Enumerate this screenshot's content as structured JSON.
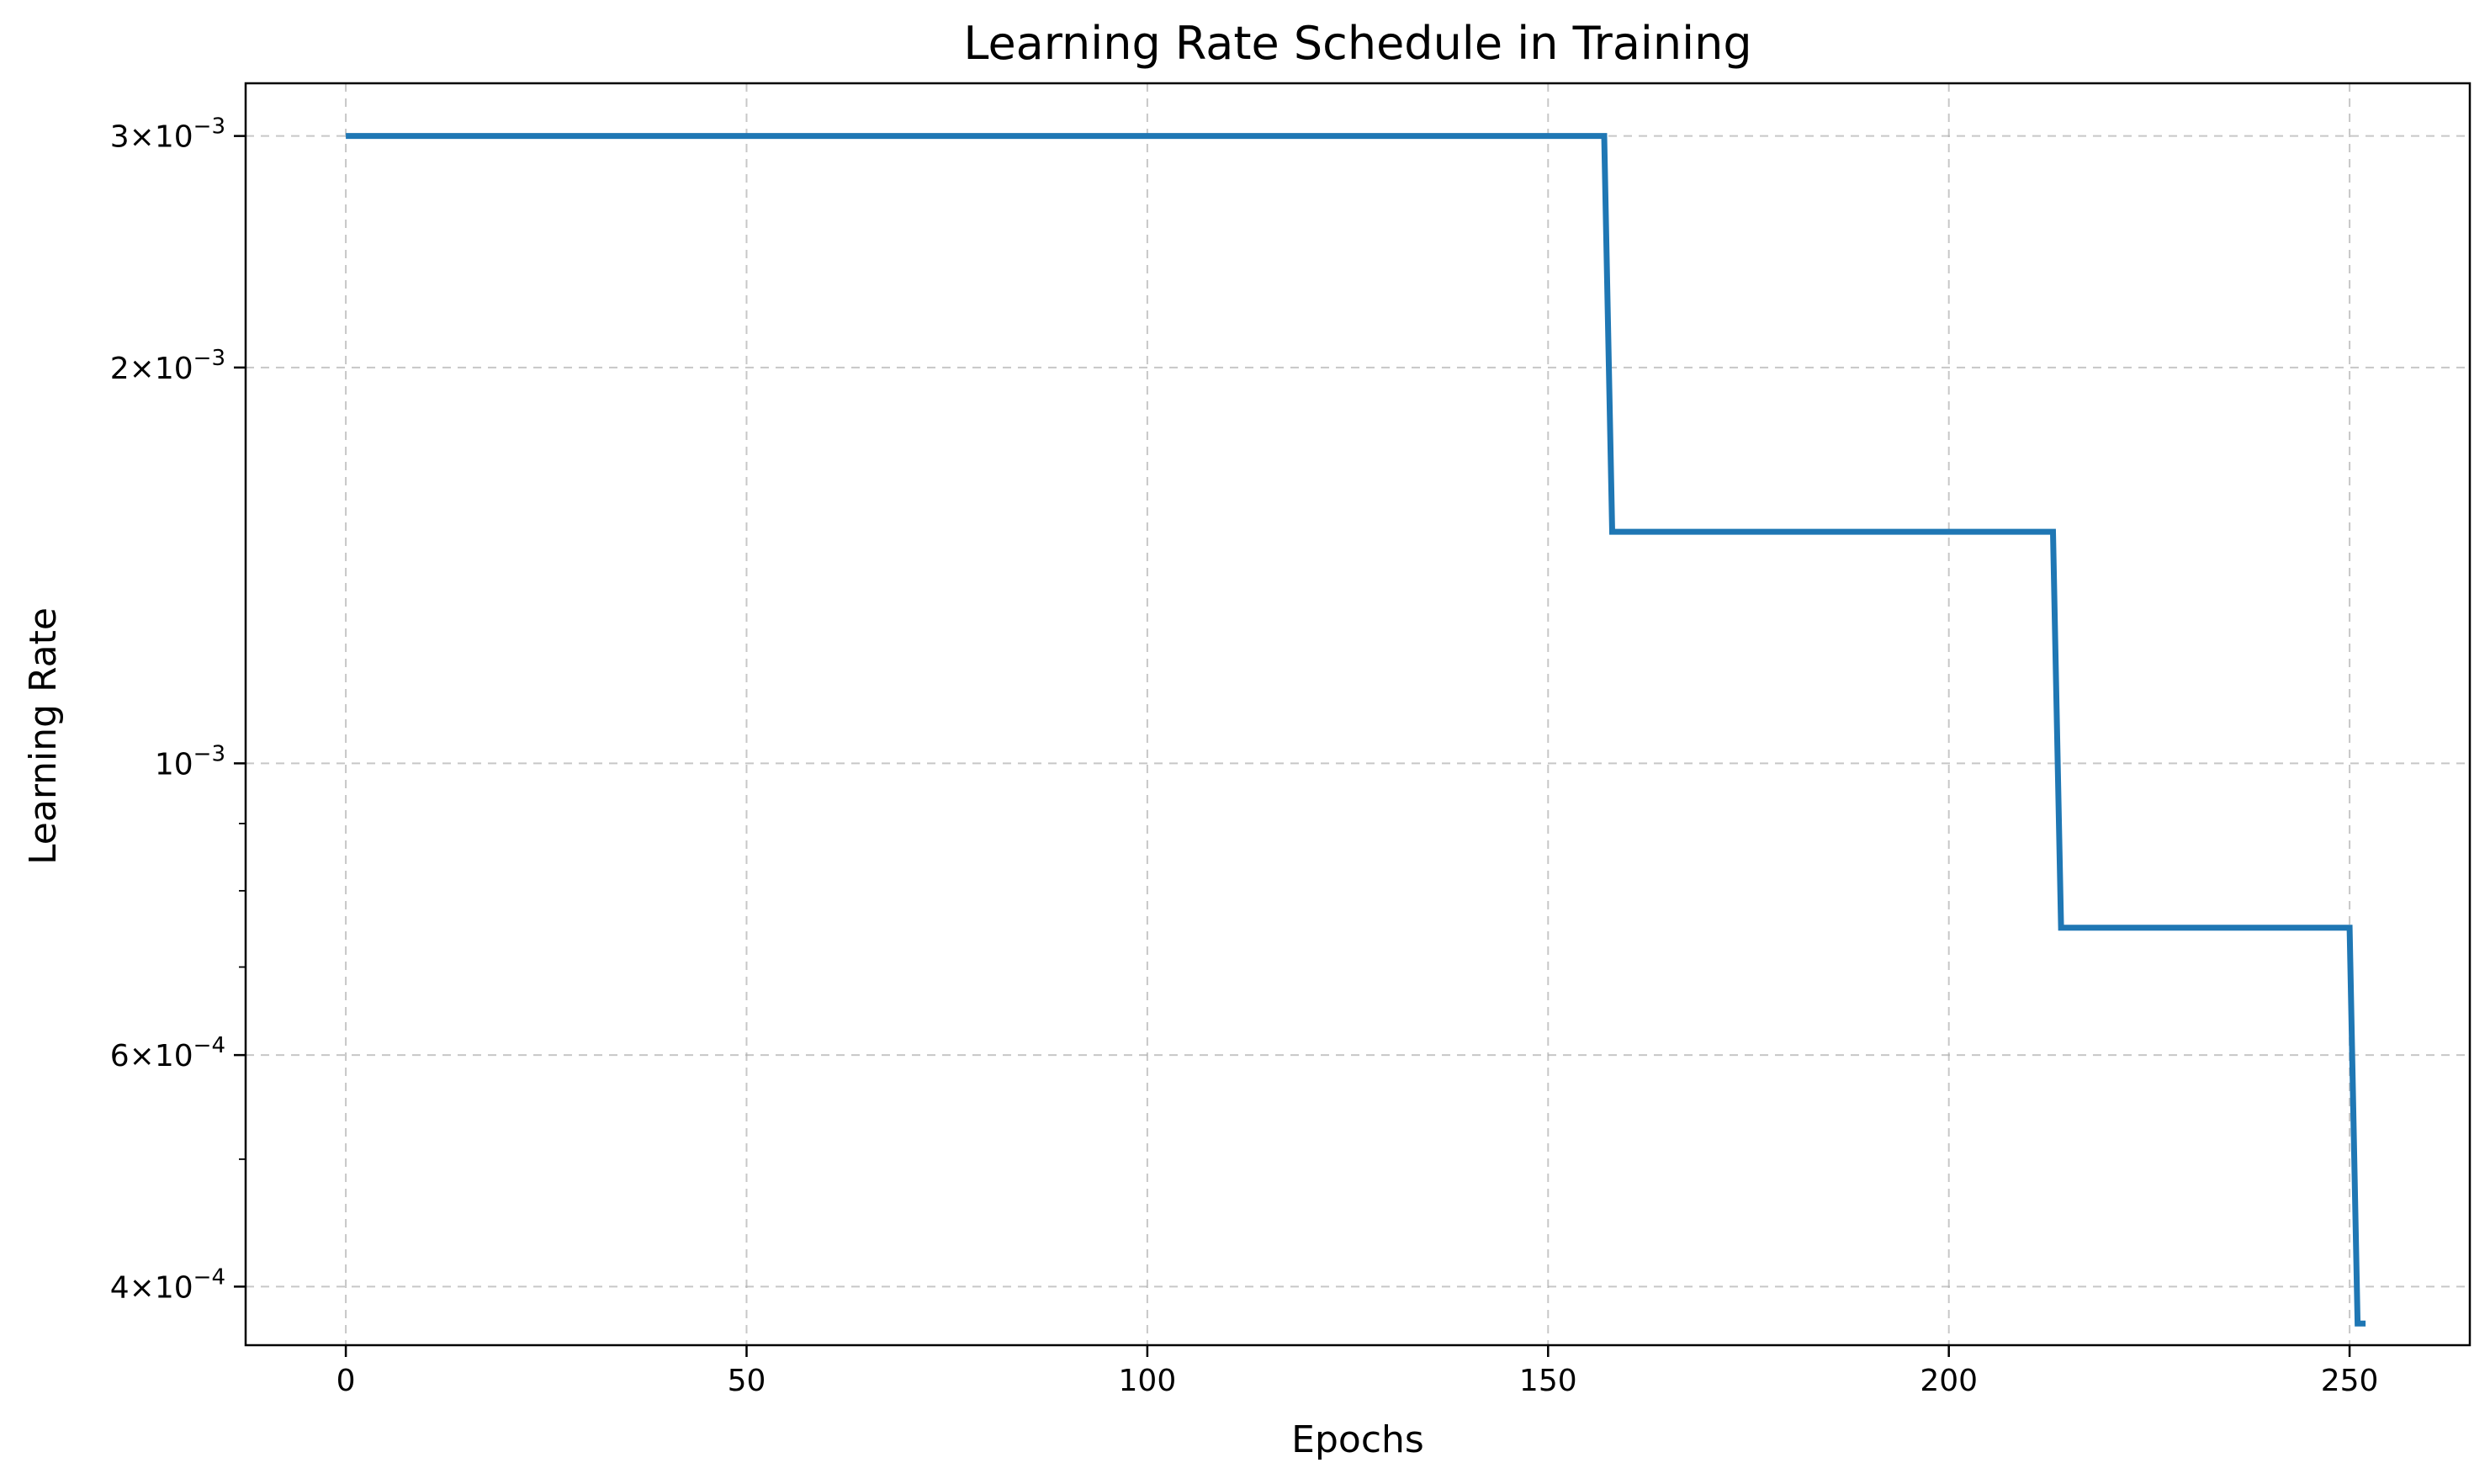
{
  "chart_data": {
    "type": "line",
    "title": "Learning Rate Schedule in Training",
    "xlabel": "Epochs",
    "ylabel": "Learning Rate",
    "xlim": [
      -12.5,
      265
    ],
    "ylim": [
      0.000361,
      0.00329
    ],
    "yscale": "log",
    "grid": true,
    "x_ticks": [
      0,
      50,
      100,
      150,
      200,
      250
    ],
    "x_tick_labels": [
      "0",
      "50",
      "100",
      "150",
      "200",
      "250"
    ],
    "y_ticks": [
      {
        "value": 0.003,
        "mantissa": "3",
        "exponent": "−3"
      },
      {
        "value": 0.002,
        "mantissa": "2",
        "exponent": "−3"
      },
      {
        "value": 0.001,
        "mantissa": "",
        "exponent": "−3"
      },
      {
        "value": 0.0006,
        "mantissa": "6",
        "exponent": "−4"
      },
      {
        "value": 0.0004,
        "mantissa": "4",
        "exponent": "−4"
      }
    ],
    "y_minor_ticks": [
      0.0009,
      0.0008,
      0.0007,
      0.0005
    ],
    "series": [
      {
        "color": "#1f77b4",
        "points": [
          [
            0,
            0.003
          ],
          [
            157,
            0.003
          ],
          [
            158,
            0.0015
          ],
          [
            213,
            0.0015
          ],
          [
            214,
            0.00075
          ],
          [
            250,
            0.00075
          ],
          [
            251,
            0.000375
          ],
          [
            252,
            0.000375
          ]
        ]
      }
    ]
  }
}
